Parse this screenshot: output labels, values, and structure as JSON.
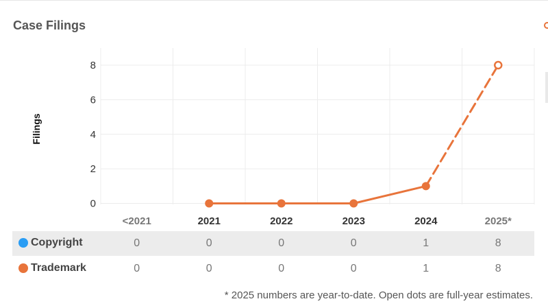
{
  "header": {
    "title": "Case Filings"
  },
  "chart_data": {
    "type": "line",
    "ylabel": "Filings",
    "xlabel": "",
    "ylim": [
      0,
      8.5
    ],
    "yticks": [
      "0",
      "2",
      "4",
      "6",
      "8"
    ],
    "categories": [
      "<2021",
      "2021",
      "2022",
      "2023",
      "2024",
      "2025*"
    ],
    "category_styles": [
      "muted",
      "bold",
      "bold",
      "bold",
      "bold",
      "muted"
    ],
    "grid": true,
    "series": [
      {
        "name": "Trademark",
        "color": "#e8743b",
        "values": [
          null,
          0,
          0,
          0,
          1,
          8
        ],
        "estimated": [
          false,
          false,
          false,
          false,
          false,
          true
        ]
      }
    ]
  },
  "table": {
    "rows": [
      {
        "name": "Copyright",
        "color": "#2a9df4",
        "values": [
          "0",
          "0",
          "0",
          "0",
          "1",
          "8"
        ]
      },
      {
        "name": "Trademark",
        "color": "#e8743b",
        "values": [
          "0",
          "0",
          "0",
          "0",
          "1",
          "8"
        ]
      }
    ]
  },
  "footnote": "* 2025 numbers are year-to-date. Open dots are full-year estimates."
}
